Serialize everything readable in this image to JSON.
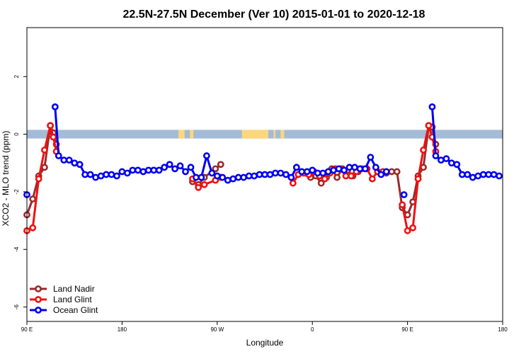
{
  "chart_data": {
    "type": "line",
    "title": "22.5N-27.5N December (Ver 10)   2015-01-01 to 2020-12-18",
    "xlabel": "Longitude",
    "ylabel": "XCO2 - MLO trend (ppm)",
    "xlim": [
      -90,
      180
    ],
    "ylim": [
      -6.5,
      3.7
    ],
    "x_ticks": [
      {
        "value": -90,
        "label": "90 E"
      },
      {
        "value": -36,
        "label": "180"
      },
      {
        "value": 18,
        "label": "90 W"
      },
      {
        "value": 72,
        "label": "0"
      },
      {
        "value": 126,
        "label": "90 E"
      },
      {
        "value": 180,
        "label": "180"
      }
    ],
    "y_ticks": [
      {
        "value": 2,
        "label": "2"
      },
      {
        "value": 0,
        "label": "0"
      },
      {
        "value": -2,
        "label": "-2"
      },
      {
        "value": -4,
        "label": "-4"
      },
      {
        "value": -6,
        "label": "-6"
      }
    ],
    "land_band": {
      "y_low": -0.15,
      "y_high": 0.15,
      "ocean_color": "#a3bbd7",
      "land_color": "#fcd77b"
    },
    "land_segments": [
      [
        -4,
        -0.5
      ],
      [
        2.5,
        4.5
      ],
      [
        32,
        47
      ],
      [
        50,
        51
      ],
      [
        54,
        56
      ]
    ],
    "legend": {
      "position": "bottom-left"
    },
    "series": [
      {
        "name": "Land Nadir",
        "color": "#9a2a2a",
        "points": [
          [
            -90,
            -2.8
          ],
          [
            -86.7,
            -2.25
          ],
          [
            -83.3,
            -1.45
          ],
          [
            -80,
            -1.15
          ],
          [
            -76.7,
            0.3
          ],
          [
            -75,
            0.05
          ],
          [
            -73.3,
            -0.35
          ],
          [
            4,
            -1.65
          ],
          [
            7.3,
            -1.75
          ],
          [
            10.7,
            -1.5
          ],
          [
            17,
            -1.2
          ],
          [
            20,
            -1.05
          ],
          [
            68,
            -1.35
          ],
          [
            71,
            -1.5
          ],
          [
            74,
            -1.45
          ],
          [
            77,
            -1.7
          ],
          [
            80,
            -1.5
          ],
          [
            83,
            -1.2
          ],
          [
            86,
            -1.5
          ],
          [
            89,
            -1.2
          ],
          [
            92,
            -1.25
          ],
          [
            95,
            -1.45
          ],
          [
            98,
            -1.3
          ],
          [
            114,
            -1.35
          ],
          [
            117,
            -1.3
          ],
          [
            120,
            -1.3
          ],
          [
            123,
            -2.55
          ],
          [
            126,
            -2.8
          ],
          [
            129,
            -2.35
          ],
          [
            132,
            -1.45
          ],
          [
            135,
            -1.15
          ],
          [
            138,
            0.3
          ],
          [
            140,
            0.25
          ],
          [
            142,
            -0.35
          ]
        ]
      },
      {
        "name": "Land Glint",
        "color": "#ee1111",
        "points": [
          [
            -90,
            -3.35
          ],
          [
            -86.7,
            -3.25
          ],
          [
            -83.3,
            -1.55
          ],
          [
            -80,
            -0.55
          ],
          [
            -76.7,
            0.3
          ],
          [
            -75,
            -0.1
          ],
          [
            -73.3,
            -0.6
          ],
          [
            4,
            -1.55
          ],
          [
            7.3,
            -1.85
          ],
          [
            10.7,
            -1.75
          ],
          [
            17,
            -1.6
          ],
          [
            20,
            -1.5
          ],
          [
            61,
            -1.7
          ],
          [
            64,
            -1.4
          ],
          [
            67,
            -1.35
          ],
          [
            70,
            -1.4
          ],
          [
            73,
            -1.3
          ],
          [
            76,
            -1.45
          ],
          [
            79,
            -1.55
          ],
          [
            82,
            -1.35
          ],
          [
            85,
            -1.2
          ],
          [
            88,
            -1.2
          ],
          [
            91,
            -1.45
          ],
          [
            94,
            -1.45
          ],
          [
            97,
            -1.3
          ],
          [
            100,
            -1.2
          ],
          [
            103,
            -1.2
          ],
          [
            106,
            -1.55
          ],
          [
            109,
            -1.3
          ],
          [
            112,
            -1.3
          ],
          [
            123,
            -2.45
          ],
          [
            126,
            -3.35
          ],
          [
            129,
            -3.25
          ],
          [
            132,
            -1.55
          ],
          [
            135,
            -0.55
          ],
          [
            138,
            0.3
          ],
          [
            140,
            -0.1
          ],
          [
            142,
            -0.6
          ]
        ]
      },
      {
        "name": "Ocean Glint",
        "color": "#0000ee",
        "points": [
          [
            -90,
            -2.1
          ],
          [
            -74,
            0.95
          ],
          [
            -72,
            -0.75
          ],
          [
            -69,
            -0.9
          ],
          [
            -66,
            -0.9
          ],
          [
            -63,
            -1.0
          ],
          [
            -60,
            -1.05
          ],
          [
            -57,
            -1.4
          ],
          [
            -54,
            -1.4
          ],
          [
            -51,
            -1.5
          ],
          [
            -48,
            -1.45
          ],
          [
            -45,
            -1.4
          ],
          [
            -42,
            -1.4
          ],
          [
            -39,
            -1.45
          ],
          [
            -36,
            -1.3
          ],
          [
            -33,
            -1.35
          ],
          [
            -30,
            -1.25
          ],
          [
            -27,
            -1.25
          ],
          [
            -24,
            -1.3
          ],
          [
            -21,
            -1.25
          ],
          [
            -18,
            -1.25
          ],
          [
            -15,
            -1.25
          ],
          [
            -12,
            -1.15
          ],
          [
            -9,
            -1.05
          ],
          [
            -6,
            -1.2
          ],
          [
            -3,
            -1.1
          ],
          [
            0,
            -1.3
          ],
          [
            3,
            -1.15
          ],
          [
            6,
            -1.5
          ],
          [
            9,
            -1.5
          ],
          [
            12,
            -0.75
          ],
          [
            15,
            -1.35
          ],
          [
            18,
            -1.45
          ],
          [
            21,
            -1.5
          ],
          [
            24,
            -1.6
          ],
          [
            27,
            -1.55
          ],
          [
            30,
            -1.5
          ],
          [
            33,
            -1.5
          ],
          [
            36,
            -1.45
          ],
          [
            39,
            -1.45
          ],
          [
            42,
            -1.4
          ],
          [
            45,
            -1.4
          ],
          [
            48,
            -1.4
          ],
          [
            51,
            -1.35
          ],
          [
            54,
            -1.35
          ],
          [
            57,
            -1.4
          ],
          [
            60,
            -1.5
          ],
          [
            63,
            -1.15
          ],
          [
            66,
            -1.3
          ],
          [
            69,
            -1.3
          ],
          [
            72,
            -1.25
          ],
          [
            75,
            -1.35
          ],
          [
            78,
            -1.35
          ],
          [
            81,
            -1.3
          ],
          [
            84,
            -1.25
          ],
          [
            87,
            -1.2
          ],
          [
            90,
            -1.25
          ],
          [
            93,
            -1.15
          ],
          [
            96,
            -1.15
          ],
          [
            99,
            -1.2
          ],
          [
            102,
            -1.2
          ],
          [
            105,
            -0.8
          ],
          [
            108,
            -1.15
          ],
          [
            111,
            -1.4
          ],
          [
            114,
            -1.3
          ],
          [
            124,
            -2.1
          ],
          [
            140,
            0.95
          ],
          [
            142,
            -0.75
          ],
          [
            145,
            -0.9
          ],
          [
            148,
            -0.85
          ],
          [
            151,
            -1.0
          ],
          [
            154,
            -1.05
          ],
          [
            157,
            -1.4
          ],
          [
            160,
            -1.4
          ],
          [
            163,
            -1.5
          ],
          [
            166,
            -1.45
          ],
          [
            169,
            -1.4
          ],
          [
            172,
            -1.4
          ],
          [
            175,
            -1.4
          ],
          [
            178,
            -1.45
          ]
        ]
      }
    ]
  }
}
